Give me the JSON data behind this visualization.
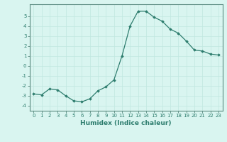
{
  "x": [
    0,
    1,
    2,
    3,
    4,
    5,
    6,
    7,
    8,
    9,
    10,
    11,
    12,
    13,
    14,
    15,
    16,
    17,
    18,
    19,
    20,
    21,
    22,
    23
  ],
  "y": [
    -2.8,
    -2.9,
    -2.3,
    -2.4,
    -3.0,
    -3.5,
    -3.6,
    -3.3,
    -2.5,
    -2.1,
    -1.4,
    1.0,
    4.0,
    5.5,
    5.5,
    4.9,
    4.5,
    3.7,
    3.3,
    2.5,
    1.6,
    1.5,
    1.2,
    1.1
  ],
  "line_color": "#2e7d6e",
  "marker": "D",
  "marker_size": 1.8,
  "bg_color": "#d9f5f0",
  "grid_color": "#c0e8e0",
  "xlabel": "Humidex (Indice chaleur)",
  "xlim": [
    -0.5,
    23.5
  ],
  "ylim": [
    -4.5,
    6.2
  ],
  "yticks": [
    -4,
    -3,
    -2,
    -1,
    0,
    1,
    2,
    3,
    4,
    5
  ],
  "xticks": [
    0,
    1,
    2,
    3,
    4,
    5,
    6,
    7,
    8,
    9,
    10,
    11,
    12,
    13,
    14,
    15,
    16,
    17,
    18,
    19,
    20,
    21,
    22,
    23
  ],
  "tick_fontsize": 5.0,
  "label_fontsize": 6.5,
  "spine_color": "#5a8a80",
  "tick_color": "#2e7d6e"
}
